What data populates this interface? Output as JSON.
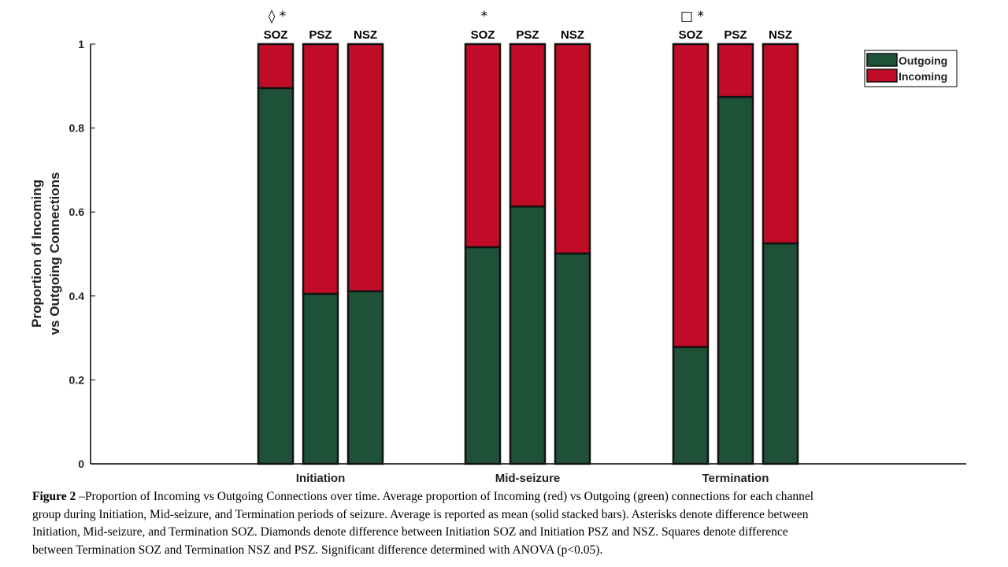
{
  "chart_data": {
    "type": "bar",
    "stacked": true,
    "title": "",
    "xlabel": "",
    "ylabel": "Proportion of Incoming\nvs Outgoing Connections",
    "ylabel_lines": [
      "Proportion of Incoming",
      "vs Outgoing Connections"
    ],
    "ylim": [
      0,
      1
    ],
    "yticks": [
      0,
      0.2,
      0.4,
      0.6,
      0.8,
      1
    ],
    "ytick_labels": [
      "0",
      "0.2",
      "0.4",
      "0.6",
      "0.8",
      "1"
    ],
    "grid": false,
    "legend_position": "top-right",
    "groups": [
      {
        "name": "Initiation",
        "bars": [
          {
            "label": "SOZ",
            "annotation": "◊ *",
            "outgoing": 0.895,
            "incoming": 0.105
          },
          {
            "label": "PSZ",
            "annotation": "",
            "outgoing": 0.405,
            "incoming": 0.595
          },
          {
            "label": "NSZ",
            "annotation": "",
            "outgoing": 0.411,
            "incoming": 0.589
          }
        ]
      },
      {
        "name": "Mid-seizure",
        "bars": [
          {
            "label": "SOZ",
            "annotation": "*",
            "outgoing": 0.516,
            "incoming": 0.484
          },
          {
            "label": "PSZ",
            "annotation": "",
            "outgoing": 0.613,
            "incoming": 0.387
          },
          {
            "label": "NSZ",
            "annotation": "",
            "outgoing": 0.501,
            "incoming": 0.499
          }
        ]
      },
      {
        "name": "Termination",
        "bars": [
          {
            "label": "SOZ",
            "annotation": "□ *",
            "outgoing": 0.278,
            "incoming": 0.722
          },
          {
            "label": "PSZ",
            "annotation": "",
            "outgoing": 0.874,
            "incoming": 0.126
          },
          {
            "label": "NSZ",
            "annotation": "",
            "outgoing": 0.525,
            "incoming": 0.475
          }
        ]
      }
    ],
    "series": [
      {
        "name": "Outgoing",
        "color": "#1e5138"
      },
      {
        "name": "Incoming",
        "color": "#c00c26"
      }
    ]
  },
  "caption": {
    "label": "Figure 2",
    "lines": [
      " –Proportion of Incoming vs Outgoing Connections over time. Average proportion of Incoming (red) vs Outgoing (green) connections for each channel",
      "group during Initiation, Mid-seizure, and Termination periods of seizure. Average is reported as mean (solid stacked bars). Asterisks denote difference between",
      "Initiation, Mid-seizure, and Termination SOZ. Diamonds denote difference between Initiation SOZ and Initiation PSZ and NSZ. Squares denote difference",
      "between Termination SOZ and Termination NSZ and PSZ. Significant difference determined with ANOVA (p<0.05)."
    ]
  }
}
